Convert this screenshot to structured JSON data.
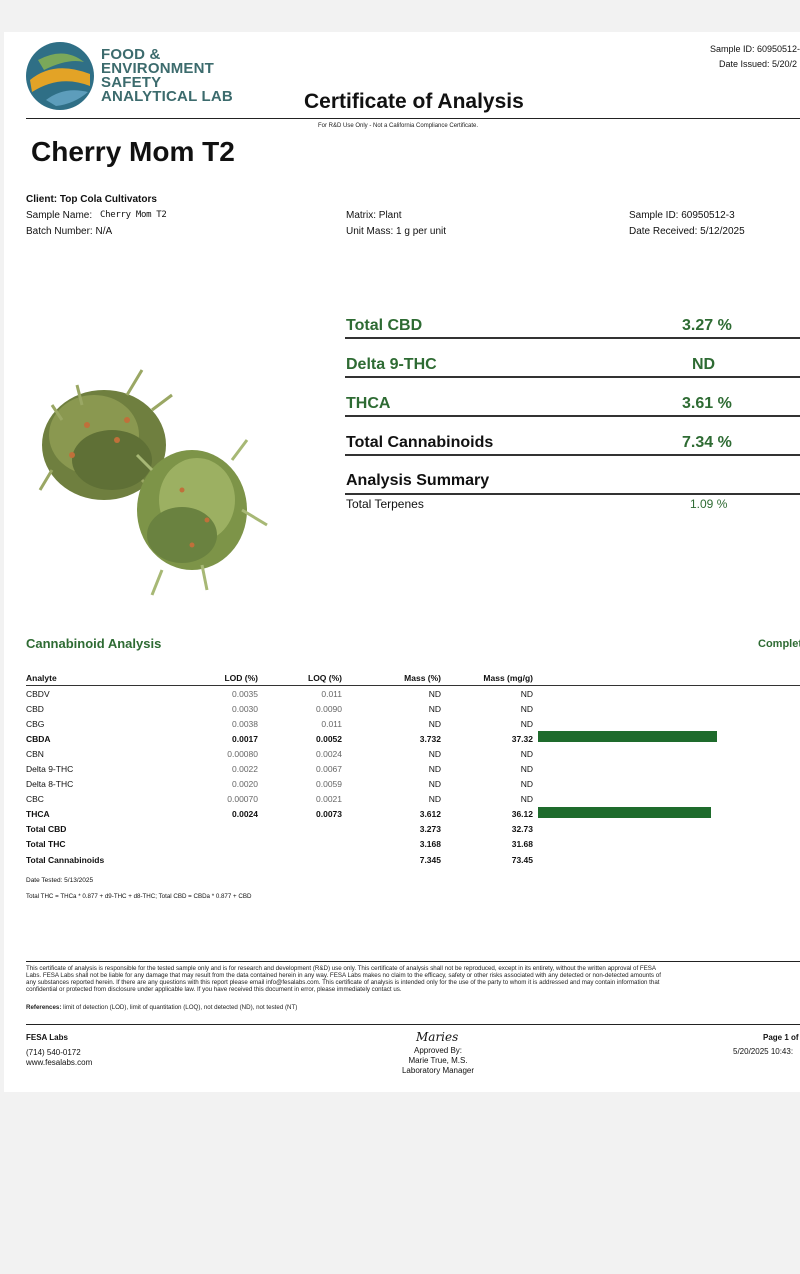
{
  "header": {
    "logo_lines": [
      "FOOD &",
      "ENVIRONMENT",
      "SAFETY",
      "ANALYTICAL LAB"
    ],
    "title": "Certificate of Analysis",
    "disclaimer": "For R&D Use Only - Not a California Compliance Certificate.",
    "sample_id": "Sample ID: 60950512-",
    "date_issued": "Date Issued: 5/20/2"
  },
  "strain_name": "Cherry Mom T2",
  "info": {
    "client": "Client: Top Cola Cultivators",
    "sample_name_label": "Sample Name:",
    "sample_name_value": "Cherry Mom T2",
    "batch": "Batch Number: N/A",
    "matrix": "Matrix: Plant",
    "unit_mass": "Unit Mass: 1 g per unit",
    "sample_id": "Sample ID: 60950512-3",
    "date_received": "Date Received: 5/12/2025"
  },
  "summary": [
    {
      "label": "Total CBD",
      "value": "3.27 %"
    },
    {
      "label": "Delta 9-THC",
      "value": "ND"
    },
    {
      "label": "THCA",
      "value": "3.61 %"
    },
    {
      "label": "Total Cannabinoids",
      "value": "7.34 %"
    }
  ],
  "analysis_summary": {
    "heading": "Analysis Summary",
    "terpenes_label": "Total Terpenes",
    "terpenes_value": "1.09 %"
  },
  "cannabinoid_section": {
    "title": "Cannabinoid Analysis",
    "status": "Complet",
    "columns": [
      "Analyte",
      "LOD (%)",
      "LOQ (%)",
      "Mass (%)",
      "Mass (mg/g)"
    ],
    "rows": [
      {
        "analyte": "CBDV",
        "lod": "0.0035",
        "loq": "0.011",
        "mass_pct": "ND",
        "mass_mg": "ND"
      },
      {
        "analyte": "CBD",
        "lod": "0.0030",
        "loq": "0.0090",
        "mass_pct": "ND",
        "mass_mg": "ND"
      },
      {
        "analyte": "CBG",
        "lod": "0.0038",
        "loq": "0.011",
        "mass_pct": "ND",
        "mass_mg": "ND"
      },
      {
        "analyte": "CBDA",
        "lod": "0.0017",
        "loq": "0.0052",
        "mass_pct": "3.732",
        "mass_mg": "37.32",
        "bar": 37.32
      },
      {
        "analyte": "CBN",
        "lod": "0.00080",
        "loq": "0.0024",
        "mass_pct": "ND",
        "mass_mg": "ND"
      },
      {
        "analyte": "Delta 9-THC",
        "lod": "0.0022",
        "loq": "0.0067",
        "mass_pct": "ND",
        "mass_mg": "ND"
      },
      {
        "analyte": "Delta 8-THC",
        "lod": "0.0020",
        "loq": "0.0059",
        "mass_pct": "ND",
        "mass_mg": "ND"
      },
      {
        "analyte": "CBC",
        "lod": "0.00070",
        "loq": "0.0021",
        "mass_pct": "ND",
        "mass_mg": "ND"
      },
      {
        "analyte": "THCA",
        "lod": "0.0024",
        "loq": "0.0073",
        "mass_pct": "3.612",
        "mass_mg": "36.12",
        "bar": 36.12
      }
    ],
    "totals": [
      {
        "analyte": "Total CBD",
        "mass_pct": "3.273",
        "mass_mg": "32.73"
      },
      {
        "analyte": "Total THC",
        "mass_pct": "3.168",
        "mass_mg": "31.68"
      },
      {
        "analyte": "Total Cannabinoids",
        "mass_pct": "7.345",
        "mass_mg": "73.45"
      }
    ],
    "date_tested": "Date Tested: 5/13/2025",
    "formula": "Total THC = THCa * 0.877 + d9-THC + d8-THC; Total CBD = CBDa * 0.877 + CBD"
  },
  "legal": {
    "line1": "This certificate of analysis is responsible for the tested sample only and is for research and development (R&D) use only. This certificate of analysis shall not be reproduced, except in its entirety, without the written approval of FESA",
    "line2": "Labs. FESA Labs shall not be liable for any damage that may result from the data contained herein in any way. FESA Labs makes no claim to the efficacy, safety or other risks associated with any detected or non-detected amounts of",
    "line3": "any substances reported herein. If there are any questions with this report please email info@fesalabs.com. This certificate of analysis is intended only for the use of the party to whom it is addressed and may contain information that",
    "line4": "confidential or protected from disclosure under applicable law. If you have received this document in error, please immediately contact us.",
    "references_label": "References:",
    "references_text": "limit of detection (LOD), limit of quantitation (LOQ), not detected (ND), not tested (NT)"
  },
  "footer": {
    "company": "FESA Labs",
    "phone": "(714) 540-0172",
    "website": "www.fesalabs.com",
    "signature": "Maries",
    "approved_by": "Approved By:",
    "approver_name": "Marie True, M.S.",
    "approver_title": "Laboratory Manager",
    "page": "Page 1 of",
    "timestamp": "5/20/2025 10:43:"
  },
  "colors": {
    "accent_green": "#2e6b33",
    "bar_green": "#1e6b2c",
    "logo_teal": "#3c6b6d"
  }
}
